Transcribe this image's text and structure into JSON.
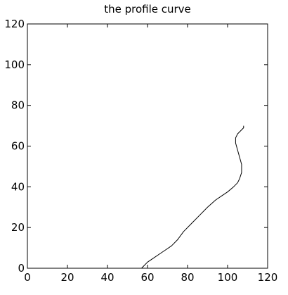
{
  "chart_data": {
    "type": "line",
    "title": "the profile curve",
    "xlabel": "",
    "ylabel": "",
    "xlim": [
      0,
      120
    ],
    "ylim": [
      0,
      120
    ],
    "xticks": [
      "0",
      "20",
      "40",
      "60",
      "80",
      "100",
      "120"
    ],
    "yticks": [
      "0",
      "20",
      "40",
      "60",
      "80",
      "100",
      "120"
    ],
    "grid": false,
    "legend": "none",
    "line_color": "#000000",
    "series": [
      {
        "x": [
          57,
          58,
          60,
          63,
          66,
          69,
          72,
          75,
          78,
          82,
          86,
          90,
          94,
          97,
          100,
          103,
          105,
          106,
          107,
          107,
          106,
          105,
          104,
          104,
          105,
          106,
          107,
          108,
          108
        ],
        "y": [
          0,
          1,
          3,
          5,
          7,
          9,
          11,
          14,
          18,
          22,
          26,
          30,
          33.5,
          35.5,
          37.5,
          40,
          42,
          44,
          47,
          51,
          54.5,
          58,
          61.5,
          64,
          66,
          67,
          68,
          69,
          70
        ]
      }
    ]
  }
}
